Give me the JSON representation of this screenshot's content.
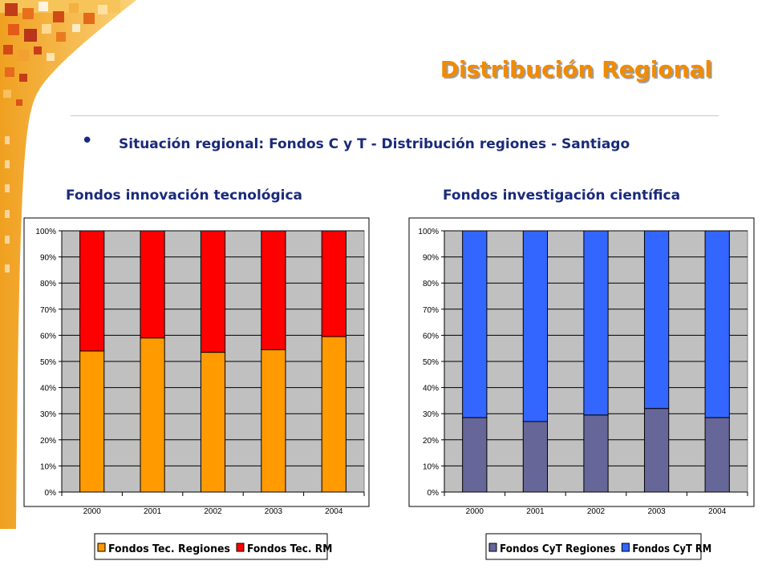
{
  "slide": {
    "title": "Distribución Regional",
    "bullet": "Situación regional: Fondos C y T - Distribución regiones - Santiago"
  },
  "colors": {
    "title": "#f28a00",
    "text": "#1a2a7a",
    "plot_bg": "#c0c0c0",
    "orange": "#ff9a00",
    "red": "#ff0000",
    "slate": "#666699",
    "blue": "#3366ff"
  },
  "chart_data": [
    {
      "type": "bar",
      "stacked": "percent",
      "title": "Fondos innovación tecnológica",
      "categories": [
        "2000",
        "2001",
        "2002",
        "2003",
        "2004"
      ],
      "series": [
        {
          "name": "Fondos Tec. Regiones",
          "color": "#ff9a00",
          "values": [
            54,
            59,
            53.5,
            54.5,
            59.5
          ]
        },
        {
          "name": "Fondos Tec. RM",
          "color": "#ff0000",
          "values": [
            46,
            41,
            46.5,
            45.5,
            40.5
          ]
        }
      ],
      "yticks": [
        "0%",
        "10%",
        "20%",
        "30%",
        "40%",
        "50%",
        "60%",
        "70%",
        "80%",
        "90%",
        "100%"
      ],
      "ylim": [
        0,
        100
      ],
      "grid": true,
      "legend": "bottom"
    },
    {
      "type": "bar",
      "stacked": "percent",
      "title": "Fondos investigación científica",
      "categories": [
        "2000",
        "2001",
        "2002",
        "2003",
        "2004"
      ],
      "series": [
        {
          "name": "Fondos CyT Regiones",
          "color": "#666699",
          "values": [
            28.5,
            27,
            29.5,
            32,
            28.5
          ]
        },
        {
          "name": "Fondos CyT RM",
          "color": "#3366ff",
          "values": [
            71.5,
            73,
            70.5,
            68,
            71.5
          ]
        }
      ],
      "yticks": [
        "0%",
        "10%",
        "20%",
        "30%",
        "40%",
        "50%",
        "60%",
        "70%",
        "80%",
        "90%",
        "100%"
      ],
      "ylim": [
        0,
        100
      ],
      "grid": true,
      "legend": "bottom"
    }
  ]
}
